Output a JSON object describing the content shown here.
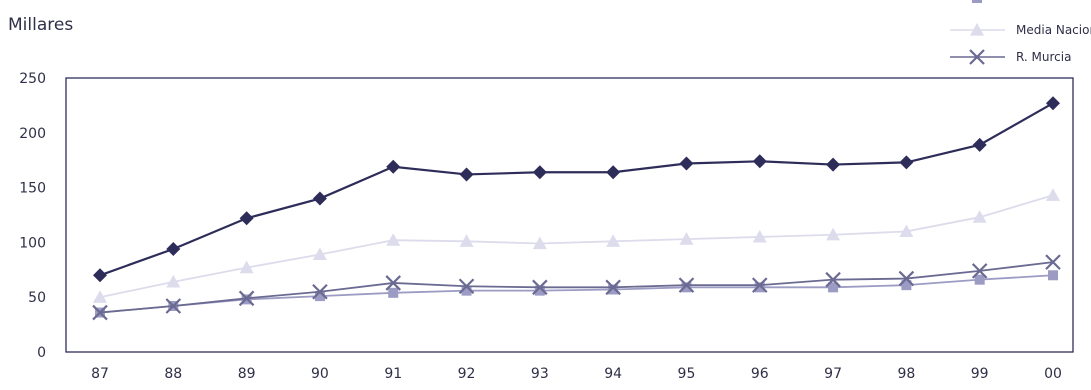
{
  "chart_data": {
    "type": "line",
    "title": "",
    "ylabel": "Millares",
    "xlabel": "",
    "categories": [
      "87",
      "88",
      "89",
      "90",
      "91",
      "92",
      "93",
      "94",
      "95",
      "96",
      "97",
      "98",
      "99",
      "00"
    ],
    "ylim": [
      0,
      250
    ],
    "yticks": [
      0,
      50,
      100,
      150,
      200,
      250
    ],
    "grid": false,
    "legend_position": "top-right",
    "series": [
      {
        "name": "",
        "marker": "diamond",
        "color": "#2e2d5a",
        "values": [
          70,
          94,
          122,
          140,
          169,
          162,
          164,
          164,
          172,
          174,
          171,
          173,
          189,
          227
        ]
      },
      {
        "name": "Media Nacional",
        "marker": "triangle",
        "color": "#dcdcec",
        "values": [
          50,
          64,
          77,
          89,
          102,
          101,
          99,
          101,
          103,
          105,
          107,
          110,
          123,
          143
        ]
      },
      {
        "name": "",
        "marker": "square",
        "color": "#9b9bc4",
        "values": [
          36,
          42,
          48,
          51,
          54,
          56,
          56,
          57,
          59,
          59,
          59,
          61,
          66,
          70
        ]
      },
      {
        "name": "R. Murcia",
        "marker": "x",
        "color": "#6a6a92",
        "values": [
          36,
          42,
          49,
          55,
          63,
          60,
          59,
          59,
          61,
          61,
          66,
          67,
          74,
          82
        ]
      }
    ]
  }
}
